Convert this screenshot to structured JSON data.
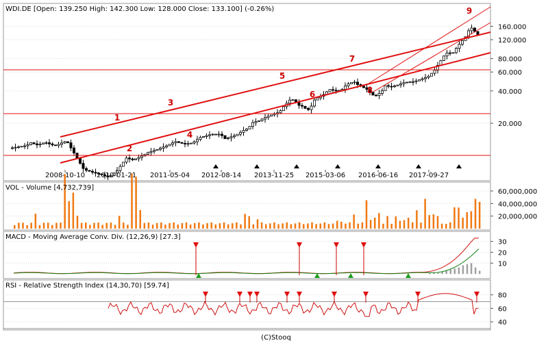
{
  "chart_data": [
    {
      "type": "candlestick",
      "title": "WDI.DE [Open: 139.250  High: 142.300  Low: 128.000  Close: 133.100] (-0.26%)",
      "y_scale": "log",
      "ylim": [
        6,
        250
      ],
      "y_ticks": [
        "160.000",
        "120.000",
        "80.000",
        "60.000",
        "40.000",
        "20.000"
      ],
      "x_ticks": [
        "2008-10-10",
        "2010-01-21",
        "2011-05-04",
        "2012-08-14",
        "2013-11-25",
        "2015-03-06",
        "2016-06-16",
        "2017-09-27"
      ],
      "price_anchors": {
        "t": [
          0,
          16,
          20,
          28,
          36,
          47,
          60,
          79,
          88,
          99,
          106,
          115,
          126,
          133,
          141,
          150,
          160,
          170,
          180,
          190,
          199,
          207,
          220,
          230,
          235,
          247,
          256,
          260,
          266,
          272,
          278,
          286,
          295,
          299,
          306,
          310,
          316,
          320,
          324,
          328,
          334,
          344,
          350,
          358,
          364,
          369,
          377,
          382,
          391,
          400,
          408,
          411,
          418,
          425,
          433,
          444,
          459,
          466,
          476,
          480,
          487,
          492,
          500,
          506,
          514
        ],
        "close": [
          11.8,
          12.4,
          13.2,
          12.5,
          13.3,
          12.3,
          13.7,
          7.4,
          7.0,
          6.6,
          6.3,
          7.1,
          9.5,
          9.1,
          9.7,
          10.7,
          11.4,
          12.3,
          13.5,
          12.8,
          13.1,
          14.7,
          15.8,
          15.8,
          14.3,
          15.5,
          17.3,
          17.8,
          20.5,
          21.0,
          22.4,
          23.9,
          25.4,
          28.2,
          32.8,
          33.1,
          29.4,
          28.8,
          27.2,
          26.6,
          33.4,
          37.1,
          41.3,
          39.9,
          41.2,
          45.7,
          48.9,
          45.3,
          41.7,
          35.4,
          39.4,
          45.0,
          43.6,
          45.3,
          48.0,
          48.9,
          54.3,
          61.7,
          83.8,
          90.1,
          91.0,
          105,
          126,
          158,
          133.1
        ]
      },
      "markers": [
        "1",
        "2",
        "3",
        "4",
        "5",
        "6",
        "7",
        "8",
        "9"
      ]
    },
    {
      "type": "bar",
      "title": "VOL - Volume [4,732,739]",
      "y_ticks": [
        "60,000,000",
        "40,000,000",
        "20,000,000"
      ],
      "ylim": [
        0,
        72000000
      ],
      "n_bars": 112,
      "volume_base": 10000000,
      "volume_spikes": [
        [
          55,
          7
        ],
        [
          56,
          4
        ],
        [
          58,
          3
        ],
        [
          77,
          1
        ],
        [
          78,
          2
        ],
        [
          81,
          8
        ],
        [
          84,
          20
        ],
        [
          85,
          3
        ],
        [
          86,
          3
        ],
        [
          87,
          9
        ],
        [
          89,
          4
        ],
        [
          91,
          6
        ],
        [
          92,
          1
        ],
        [
          93,
          3
        ],
        [
          94,
          5
        ],
        [
          96,
          11
        ],
        [
          97,
          1
        ],
        [
          98,
          15
        ],
        [
          99,
          7
        ],
        [
          100,
          8
        ],
        [
          101,
          4
        ],
        [
          105,
          13
        ],
        [
          106,
          14
        ],
        [
          107,
          3
        ],
        [
          108,
          9
        ],
        [
          109,
          11
        ],
        [
          110,
          15
        ],
        [
          111,
          17
        ],
        [
          25,
          5
        ],
        [
          5,
          6
        ],
        [
          12,
          56
        ],
        [
          13,
          15
        ],
        [
          14,
          20
        ],
        [
          15,
          10
        ],
        [
          28,
          35
        ],
        [
          29,
          30
        ],
        [
          30,
          15
        ]
      ]
    },
    {
      "type": "line",
      "title": "MACD - Moving Average Conv. Div. (12,26,9) [27.3]",
      "y_ticks": [
        "30",
        "20",
        "10"
      ],
      "ylim": [
        -3,
        38
      ],
      "histogram_heights": [
        0,
        0,
        0,
        0,
        0,
        0,
        0,
        0,
        0,
        0,
        0,
        0,
        0,
        0,
        0,
        0,
        0,
        0,
        0,
        0,
        0,
        0,
        0,
        0,
        0,
        0,
        0,
        0,
        0,
        0,
        0,
        0,
        0,
        0,
        0,
        0,
        0,
        0,
        0,
        0,
        0,
        0,
        0,
        0,
        0,
        0,
        0,
        0,
        0,
        0,
        0,
        0,
        0,
        0,
        0,
        0,
        0,
        0,
        0,
        0,
        0,
        0,
        0,
        0,
        0,
        0,
        0,
        0,
        0,
        0,
        0,
        0,
        0,
        0,
        0,
        0,
        0,
        0,
        0,
        0,
        0,
        0,
        0,
        0,
        0,
        0,
        0,
        0,
        0,
        0,
        0,
        0,
        0,
        0,
        0,
        0,
        0,
        0,
        0,
        0,
        1,
        1,
        1,
        2,
        3,
        4,
        5,
        6,
        8,
        9,
        10,
        6,
        3
      ]
    },
    {
      "type": "line",
      "title": "RSI - Relative Strength Index (14,30,70) [59.74]",
      "y_ticks": [
        "80",
        "60",
        "40"
      ],
      "ylim": [
        30,
        100
      ]
    }
  ],
  "footer": "(C)Stooq"
}
